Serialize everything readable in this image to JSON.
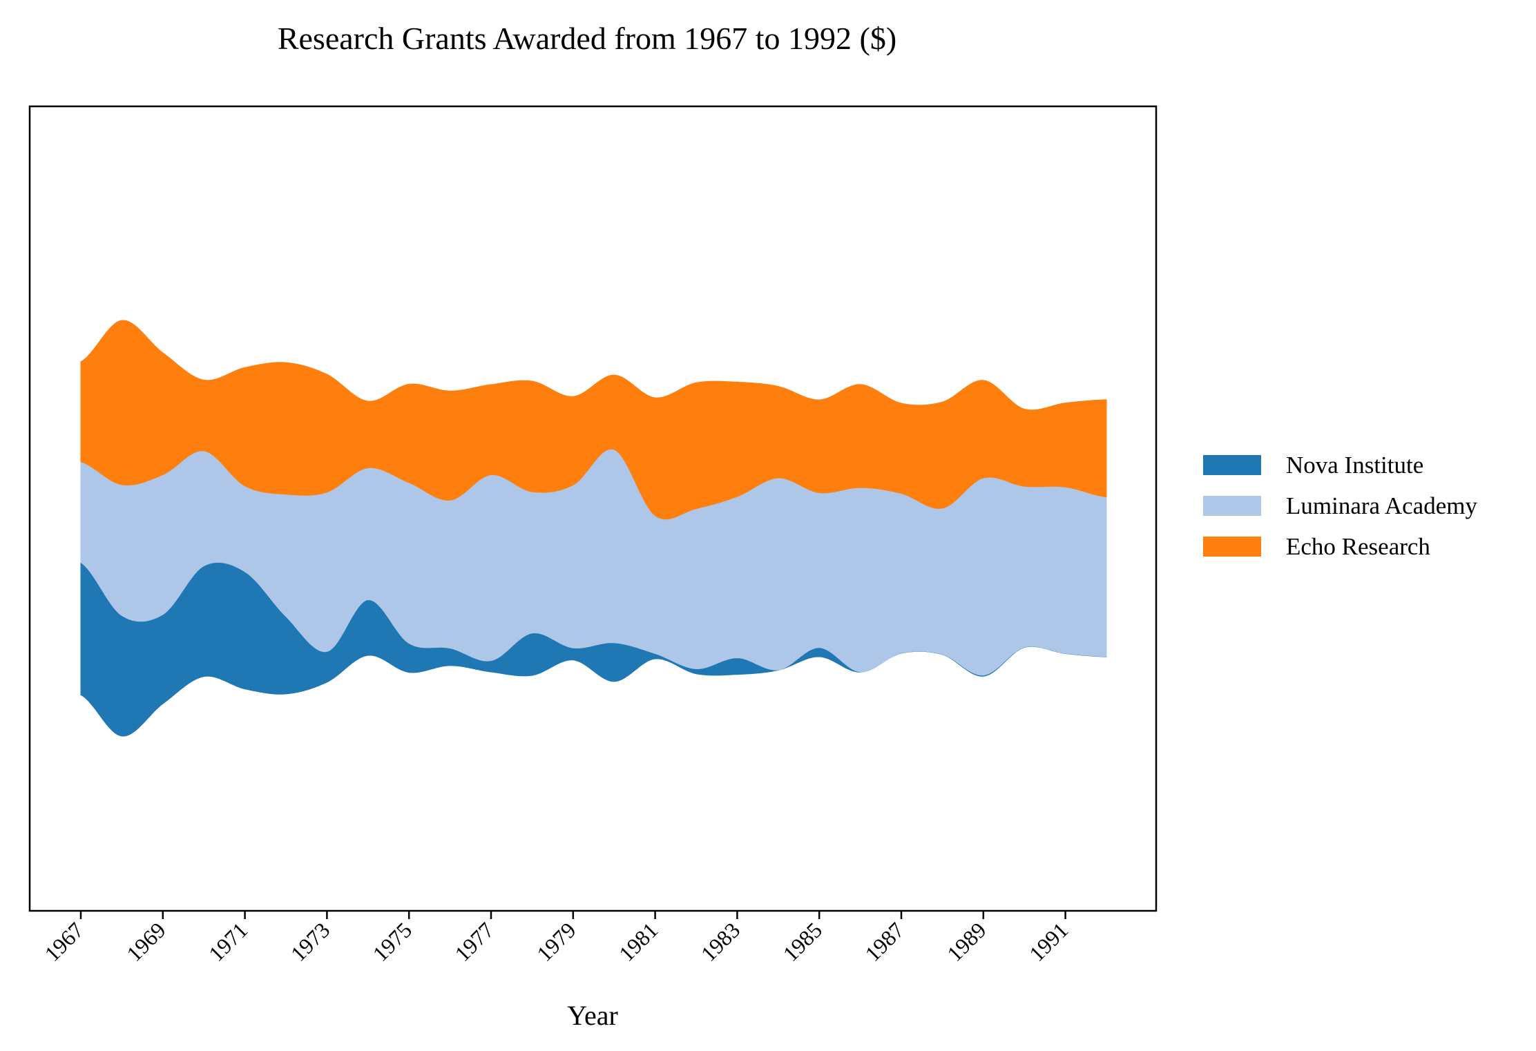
{
  "chart_data": {
    "type": "streamgraph",
    "title": "Research Grants Awarded from 1967 to 1992 ($)",
    "xlabel": "Year",
    "ylabel": "",
    "x": [
      1967,
      1968,
      1969,
      1970,
      1971,
      1972,
      1973,
      1974,
      1975,
      1976,
      1977,
      1978,
      1979,
      1980,
      1981,
      1982,
      1983,
      1984,
      1985,
      1986,
      1987,
      1988,
      1989,
      1990,
      1991,
      1992
    ],
    "xticks": [
      "1967",
      "1969",
      "1971",
      "1973",
      "1975",
      "1977",
      "1979",
      "1981",
      "1983",
      "1985",
      "1987",
      "1989",
      "1991"
    ],
    "baseline": "symmetric",
    "y_ticks_shown": false,
    "grid": false,
    "legend_position": "right",
    "series": [
      {
        "name": "Nova Institute",
        "color": "#1f77b4",
        "values": [
          2395,
          2180,
          1615,
          2000,
          2120,
          1400,
          555,
          1005,
          525,
          315,
          205,
          765,
          220,
          700,
          95,
          90,
          300,
          5,
          165,
          5,
          5,
          5,
          20,
          5,
          5,
          5
        ]
      },
      {
        "name": "Luminara Academy",
        "color": "#aec7e8",
        "values": [
          1820,
          2365,
          2525,
          2080,
          1550,
          2210,
          2880,
          2385,
          2905,
          2675,
          3360,
          2555,
          2945,
          3495,
          2495,
          2895,
          2915,
          3470,
          2800,
          3330,
          2885,
          2640,
          3565,
          2910,
          3005,
          2885
        ]
      },
      {
        "name": "Echo Research",
        "color": "#ff7f0e",
        "values": [
          1810,
          2970,
          2205,
          1280,
          2140,
          2380,
          2130,
          1205,
          1780,
          1975,
          1630,
          2000,
          1600,
          1345,
          2130,
          2275,
          2070,
          1655,
          1680,
          1865,
          1630,
          1920,
          1765,
          1395,
          1520,
          1760
        ]
      }
    ]
  }
}
